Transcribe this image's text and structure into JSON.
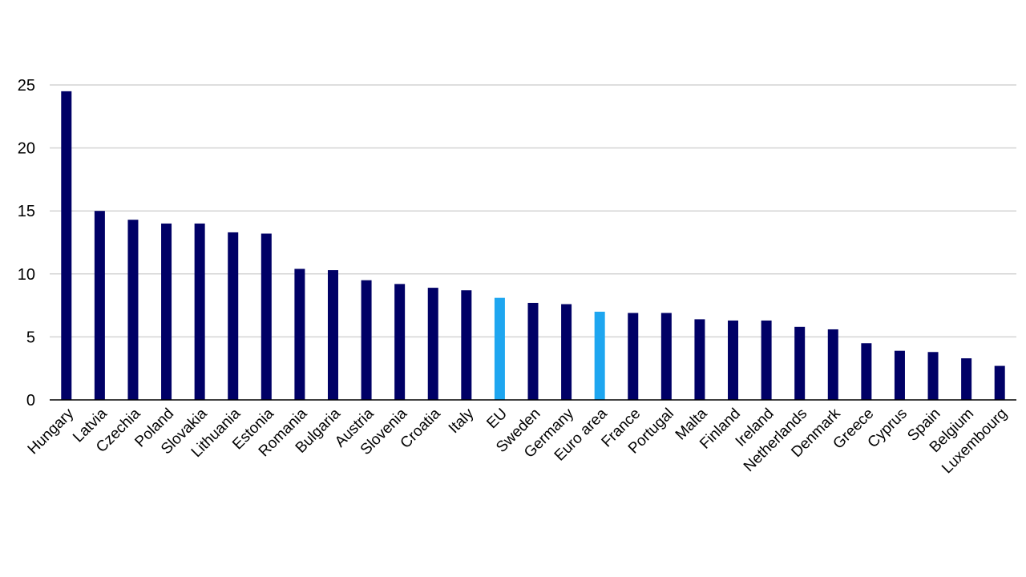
{
  "chart_data": {
    "type": "bar",
    "categories": [
      "Hungary",
      "Latvia",
      "Czechia",
      "Poland",
      "Slovakia",
      "Lithuania",
      "Estonia",
      "Romania",
      "Bulgaria",
      "Austria",
      "Slovenia",
      "Croatia",
      "Italy",
      "EU",
      "Sweden",
      "Germany",
      "Euro area",
      "France",
      "Portugal",
      "Malta",
      "Finland",
      "Ireland",
      "Netherlands",
      "Denmark",
      "Greece",
      "Cyprus",
      "Spain",
      "Belgium",
      "Luxembourg"
    ],
    "values": [
      24.5,
      15.0,
      14.3,
      14.0,
      14.0,
      13.3,
      13.2,
      10.4,
      10.3,
      9.5,
      9.2,
      8.9,
      8.7,
      8.1,
      7.7,
      7.6,
      7.0,
      6.9,
      6.9,
      6.4,
      6.3,
      6.3,
      5.8,
      5.6,
      4.5,
      3.9,
      3.8,
      3.3,
      2.7
    ],
    "highlight": [
      "EU",
      "Euro area"
    ],
    "colors": {
      "default": "#000066",
      "highlight": "#1ea6f0"
    },
    "ylim": [
      0,
      25
    ],
    "yticks": [
      0,
      5,
      10,
      15,
      20,
      25
    ],
    "grid": true,
    "legend": "none"
  }
}
